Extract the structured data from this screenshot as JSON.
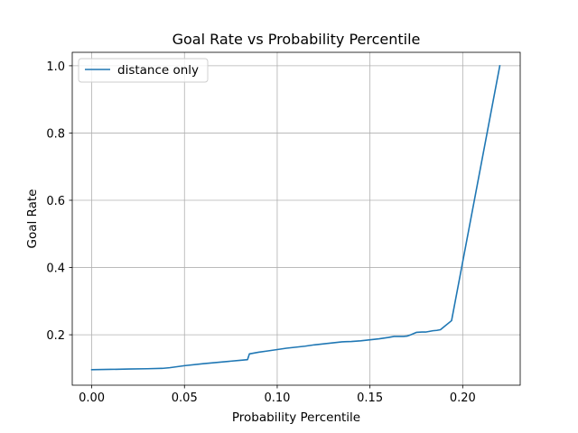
{
  "chart_data": {
    "type": "line",
    "title": "Goal Rate vs Probability Percentile",
    "xlabel": "Probability Percentile",
    "ylabel": "Goal Rate",
    "xlim": [
      -0.0105,
      0.231
    ],
    "ylim": [
      0.05,
      1.04
    ],
    "xticks": [
      0.0,
      0.05,
      0.1,
      0.15,
      0.2
    ],
    "xtick_labels": [
      "0.00",
      "0.05",
      "0.10",
      "0.15",
      "0.20"
    ],
    "yticks": [
      0.2,
      0.4,
      0.6,
      0.8,
      1.0
    ],
    "ytick_labels": [
      "0.2",
      "0.4",
      "0.6",
      "0.8",
      "1.0"
    ],
    "grid": true,
    "legend_position": "upper-left",
    "series": [
      {
        "name": "distance only",
        "color": "#1f77b4",
        "x": [
          0.0,
          0.01,
          0.02,
          0.03,
          0.038,
          0.042,
          0.05,
          0.06,
          0.07,
          0.08,
          0.084,
          0.085,
          0.09,
          0.095,
          0.1,
          0.105,
          0.11,
          0.115,
          0.12,
          0.125,
          0.13,
          0.135,
          0.14,
          0.145,
          0.15,
          0.155,
          0.16,
          0.163,
          0.165,
          0.168,
          0.17,
          0.172,
          0.175,
          0.178,
          0.18,
          0.182,
          0.184,
          0.186,
          0.188,
          0.19,
          0.194,
          0.22
        ],
        "y": [
          0.096,
          0.097,
          0.098,
          0.099,
          0.1,
          0.102,
          0.108,
          0.114,
          0.119,
          0.124,
          0.126,
          0.143,
          0.148,
          0.152,
          0.156,
          0.16,
          0.163,
          0.166,
          0.17,
          0.173,
          0.176,
          0.179,
          0.18,
          0.182,
          0.185,
          0.188,
          0.192,
          0.195,
          0.195,
          0.195,
          0.196,
          0.2,
          0.207,
          0.208,
          0.208,
          0.21,
          0.212,
          0.213,
          0.215,
          0.224,
          0.242,
          1.0
        ]
      }
    ]
  }
}
